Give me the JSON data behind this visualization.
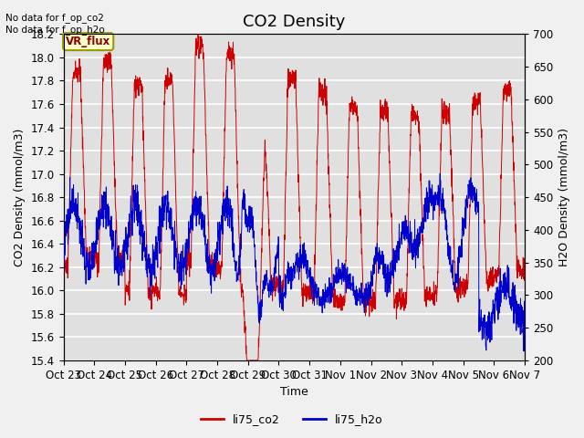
{
  "title": "CO2 Density",
  "xlabel": "Time",
  "ylabel_left": "CO2 Density (mmol/m3)",
  "ylabel_right": "H2O Density (mmol/m3)",
  "ylim_left": [
    15.4,
    18.2
  ],
  "ylim_right": [
    200,
    700
  ],
  "yticks_left": [
    15.4,
    15.6,
    15.8,
    16.0,
    16.2,
    16.4,
    16.6,
    16.8,
    17.0,
    17.2,
    17.4,
    17.6,
    17.8,
    18.0,
    18.2
  ],
  "yticks_right": [
    200,
    250,
    300,
    350,
    400,
    450,
    500,
    550,
    600,
    650,
    700
  ],
  "xtick_labels": [
    "Oct 23",
    "Oct 24",
    "Oct 25",
    "Oct 26",
    "Oct 27",
    "Oct 28",
    "Oct 29",
    "Oct 30",
    "Oct 31",
    "Nov 1",
    "Nov 2",
    "Nov 3",
    "Nov 4",
    "Nov 5",
    "Nov 6",
    "Nov 7"
  ],
  "annotation_text": "No data for f_op_co2\nNo data for f_op_h2o",
  "legend_box_text": "VR_flux",
  "color_co2": "#cc0000",
  "color_h2o": "#0000cc",
  "legend_co2": "li75_co2",
  "legend_h2o": "li75_h2o",
  "bg_color": "#e0e0e0",
  "grid_color": "#ffffff",
  "title_fontsize": 13,
  "label_fontsize": 9,
  "tick_fontsize": 8.5
}
